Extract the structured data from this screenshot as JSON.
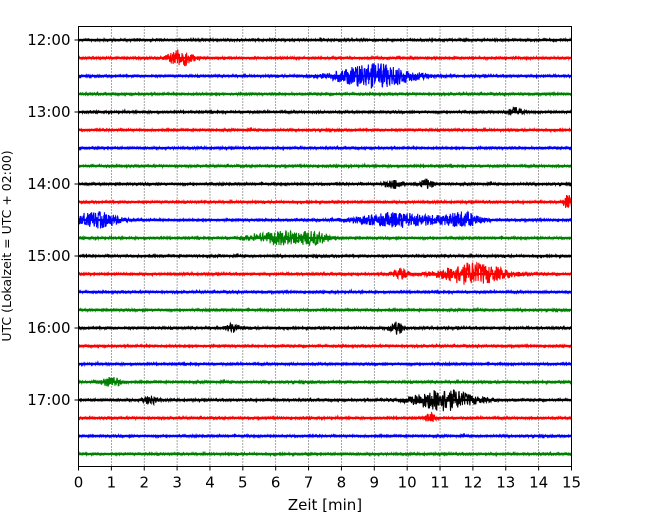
{
  "chart_data": {
    "type": "line",
    "title": "",
    "xlabel": "Zeit  [min]",
    "ylabel": "UTC (Lokalzeit = UTC + 02:00)",
    "xlim": [
      0,
      15
    ],
    "x_ticks": [
      "0",
      "1",
      "2",
      "3",
      "4",
      "5",
      "6",
      "7",
      "8",
      "9",
      "10",
      "11",
      "12",
      "13",
      "14",
      "15"
    ],
    "y_tick_labels": [
      "12:00",
      "13:00",
      "14:00",
      "15:00",
      "16:00",
      "17:00"
    ],
    "grid": "vertical dotted at every minute",
    "trace_interval_min": 15,
    "trace_colors": [
      "#000000",
      "#ff0000",
      "#0000ff",
      "#008000"
    ],
    "traces": [
      {
        "start": "12:00",
        "color": "#000000"
      },
      {
        "start": "12:15",
        "color": "#ff0000"
      },
      {
        "start": "12:30",
        "color": "#0000ff"
      },
      {
        "start": "12:45",
        "color": "#008000"
      },
      {
        "start": "13:00",
        "color": "#000000"
      },
      {
        "start": "13:15",
        "color": "#ff0000"
      },
      {
        "start": "13:30",
        "color": "#0000ff"
      },
      {
        "start": "13:45",
        "color": "#008000"
      },
      {
        "start": "14:00",
        "color": "#000000"
      },
      {
        "start": "14:15",
        "color": "#ff0000"
      },
      {
        "start": "14:30",
        "color": "#0000ff"
      },
      {
        "start": "14:45",
        "color": "#008000"
      },
      {
        "start": "15:00",
        "color": "#000000"
      },
      {
        "start": "15:15",
        "color": "#ff0000"
      },
      {
        "start": "15:30",
        "color": "#0000ff"
      },
      {
        "start": "15:45",
        "color": "#008000"
      },
      {
        "start": "16:00",
        "color": "#000000"
      },
      {
        "start": "16:15",
        "color": "#ff0000"
      },
      {
        "start": "16:30",
        "color": "#0000ff"
      },
      {
        "start": "16:45",
        "color": "#008000"
      },
      {
        "start": "17:00",
        "color": "#000000"
      },
      {
        "start": "17:15",
        "color": "#ff0000"
      },
      {
        "start": "17:30",
        "color": "#0000ff"
      },
      {
        "start": "17:45",
        "color": "#008000"
      }
    ],
    "events": [
      {
        "trace": "12:15",
        "minute": 3.1,
        "amplitude": 0.6,
        "width": 0.5
      },
      {
        "trace": "12:30",
        "minute": 9.0,
        "amplitude": 0.85,
        "width": 1.6
      },
      {
        "trace": "13:00",
        "minute": 13.3,
        "amplitude": 0.3,
        "width": 0.3
      },
      {
        "trace": "14:00",
        "minute": 9.6,
        "amplitude": 0.3,
        "width": 0.4
      },
      {
        "trace": "14:00",
        "minute": 10.6,
        "amplitude": 0.3,
        "width": 0.3
      },
      {
        "trace": "14:15",
        "minute": 14.9,
        "amplitude": 0.5,
        "width": 0.2
      },
      {
        "trace": "14:30",
        "minute": 0.6,
        "amplitude": 0.55,
        "width": 0.9
      },
      {
        "trace": "14:30",
        "minute": 9.8,
        "amplitude": 0.5,
        "width": 1.8
      },
      {
        "trace": "14:30",
        "minute": 11.7,
        "amplitude": 0.5,
        "width": 0.7
      },
      {
        "trace": "14:45",
        "minute": 6.2,
        "amplitude": 0.45,
        "width": 1.2
      },
      {
        "trace": "14:45",
        "minute": 7.2,
        "amplitude": 0.35,
        "width": 0.6
      },
      {
        "trace": "15:15",
        "minute": 12.0,
        "amplitude": 0.75,
        "width": 1.4
      },
      {
        "trace": "15:15",
        "minute": 9.8,
        "amplitude": 0.35,
        "width": 0.4
      },
      {
        "trace": "16:00",
        "minute": 9.7,
        "amplitude": 0.4,
        "width": 0.3
      },
      {
        "trace": "16:00",
        "minute": 4.7,
        "amplitude": 0.3,
        "width": 0.3
      },
      {
        "trace": "16:45",
        "minute": 1.0,
        "amplitude": 0.35,
        "width": 0.4
      },
      {
        "trace": "17:00",
        "minute": 11.1,
        "amplitude": 0.75,
        "width": 1.3
      },
      {
        "trace": "17:00",
        "minute": 2.2,
        "amplitude": 0.3,
        "width": 0.3
      },
      {
        "trace": "17:15",
        "minute": 10.7,
        "amplitude": 0.35,
        "width": 0.2
      }
    ]
  }
}
